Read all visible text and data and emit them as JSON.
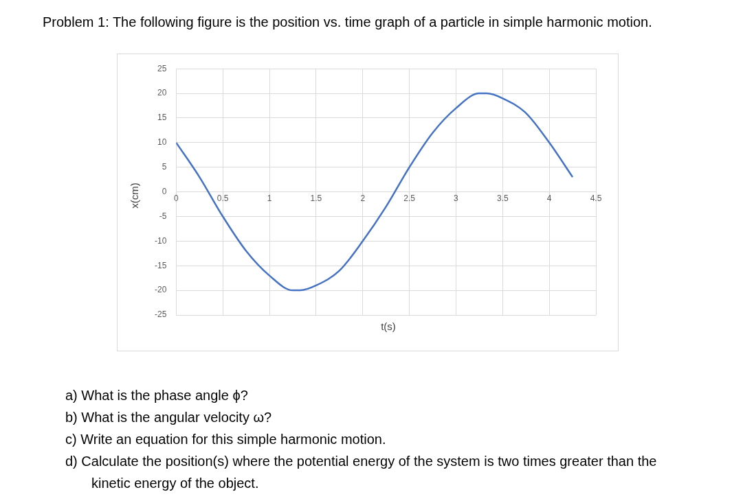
{
  "chart_data": {
    "type": "line",
    "title": "Problem 1: The following figure is the position vs. time graph of a particle in simple harmonic motion.",
    "xlabel": "t(s)",
    "ylabel": "x(cm)",
    "x": [
      0,
      0.25,
      0.5,
      0.75,
      1,
      1.25,
      1.33,
      1.5,
      1.75,
      2,
      2.25,
      2.5,
      2.75,
      3,
      3.25,
      3.33,
      3.5,
      3.75,
      4,
      4.25
    ],
    "series": [
      {
        "color": "#4472c4",
        "values": [
          10,
          3,
          -5,
          -12,
          -17,
          -20,
          -20,
          -19,
          -16,
          -10,
          -3,
          5,
          12,
          17,
          20,
          20,
          19,
          16,
          10,
          3
        ]
      }
    ],
    "xlim": [
      0,
      4.5
    ],
    "xticks": [
      0,
      0.5,
      1,
      1.5,
      2,
      2.5,
      3,
      3.5,
      4,
      4.5
    ],
    "ylim": [
      -25,
      25
    ],
    "yticks": [
      -25,
      -20,
      -15,
      -10,
      -5,
      0,
      5,
      10,
      15,
      20,
      25
    ],
    "grid": true,
    "legend": false,
    "marker": "none",
    "line_style": "solid",
    "annotations": [
      "a) What is the phase angle ϕ?",
      "b) What is the angular velocity ω?",
      "c) Write an equation for this simple harmonic motion.",
      "d) Calculate the position(s) where the potential energy of the system is two times greater than the kinetic energy of the object."
    ]
  }
}
